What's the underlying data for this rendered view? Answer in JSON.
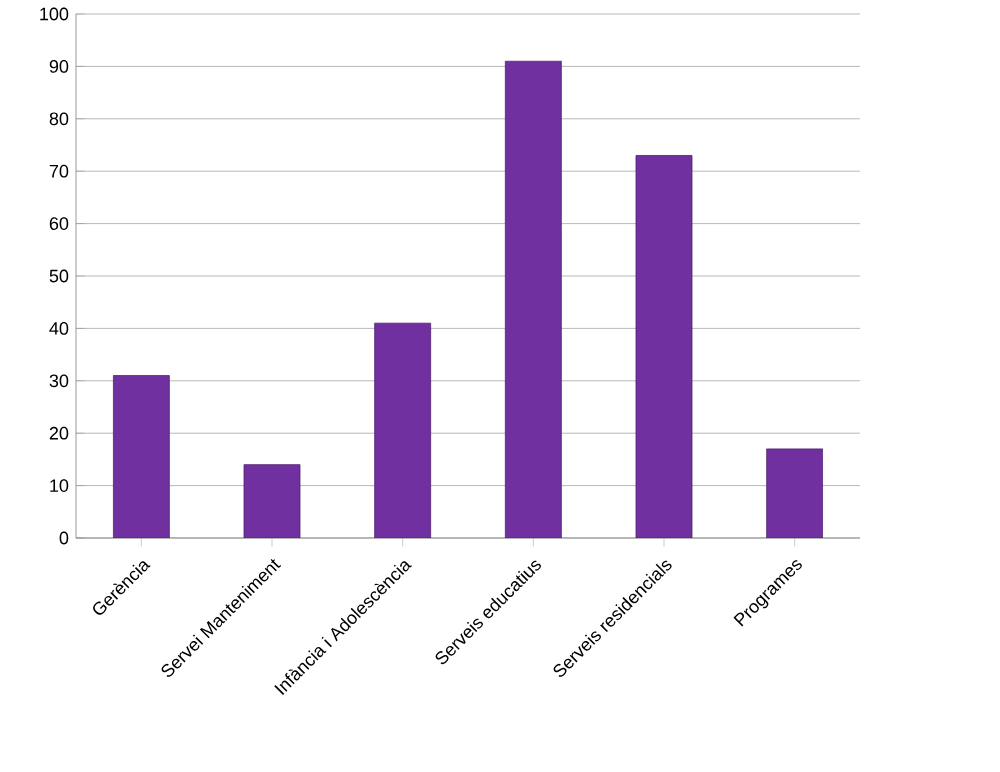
{
  "chart_data": {
    "type": "bar",
    "categories": [
      "Gerència",
      "Servei Manteniment",
      "Infància i Adolescència",
      "Serveis educatius",
      "Serveis residencials",
      "Programes"
    ],
    "values": [
      31,
      14,
      41,
      91,
      73,
      17
    ],
    "color": "#7030a0",
    "ylim": [
      0,
      100
    ],
    "yticks": [
      0,
      10,
      20,
      30,
      40,
      50,
      60,
      70,
      80,
      90,
      100
    ],
    "grid": "y"
  }
}
